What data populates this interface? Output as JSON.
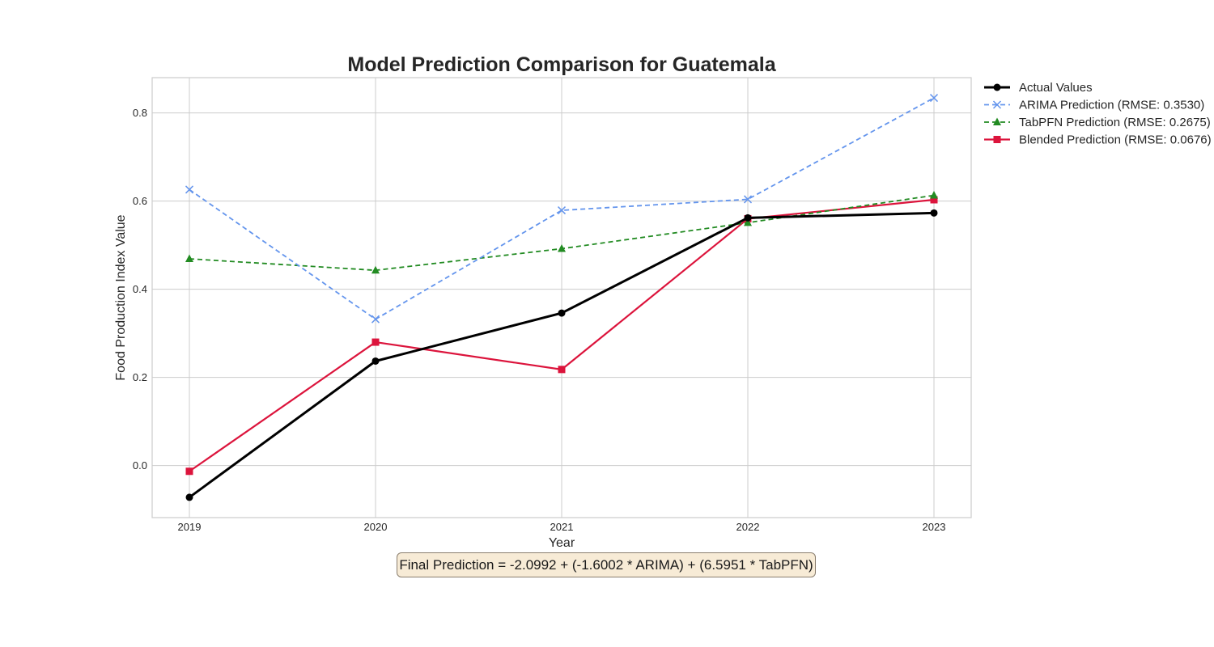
{
  "chart_data": {
    "type": "line",
    "title": "Model Prediction Comparison for Guatemala",
    "xlabel": "Year",
    "ylabel": "Food Production Index Value",
    "x": [
      "2019",
      "2020",
      "2021",
      "2022",
      "2023"
    ],
    "y_ticks": [
      "0.0",
      "0.2",
      "0.4",
      "0.6",
      "0.8"
    ],
    "y_tick_values": [
      0.0,
      0.2,
      0.4,
      0.6,
      0.8
    ],
    "ylim": [
      -0.118,
      0.88
    ],
    "grid": true,
    "legend_position": "outside-top-right",
    "series": [
      {
        "name": "Actual Values",
        "values": [
          -0.072,
          0.237,
          0.346,
          0.562,
          0.573
        ],
        "color": "#000000",
        "dash": "solid",
        "marker": "circle"
      },
      {
        "name": "ARIMA Prediction (RMSE: 0.3530)",
        "values": [
          0.626,
          0.332,
          0.579,
          0.604,
          0.834
        ],
        "color": "#6495ed",
        "dash": "dashed",
        "marker": "x"
      },
      {
        "name": "TabPFN Prediction (RMSE: 0.2675)",
        "values": [
          0.469,
          0.443,
          0.492,
          0.551,
          0.613
        ],
        "color": "#228b22",
        "dash": "dashed",
        "marker": "triangle"
      },
      {
        "name": "Blended Prediction (RMSE: 0.0676)",
        "values": [
          -0.013,
          0.28,
          0.218,
          0.56,
          0.603
        ],
        "color": "#dc143c",
        "dash": "solid",
        "marker": "square"
      }
    ]
  },
  "formula": "Final Prediction = -2.0992 + (-1.6002 * ARIMA) + (6.5951 * TabPFN)"
}
